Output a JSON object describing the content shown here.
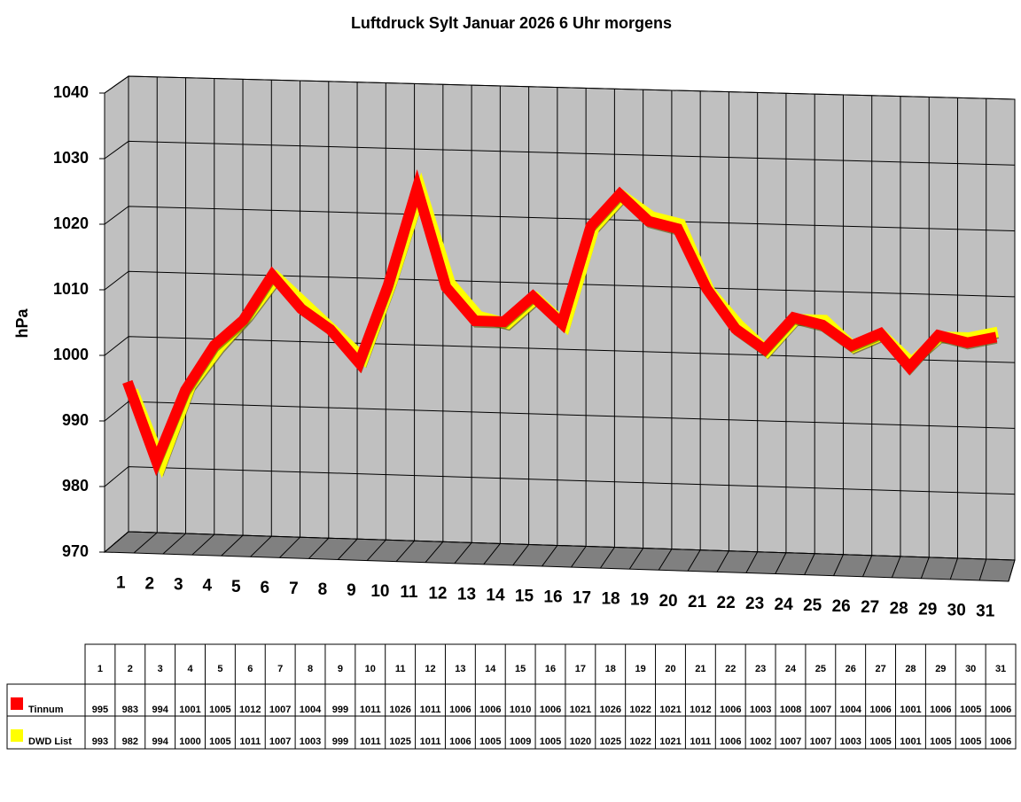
{
  "chart_data": {
    "type": "line3d",
    "title": "Luftdruck Sylt Januar 2026 6 Uhr morgens",
    "y_label": "hPa",
    "categories": [
      "1",
      "2",
      "3",
      "4",
      "5",
      "6",
      "7",
      "8",
      "9",
      "10",
      "11",
      "12",
      "13",
      "14",
      "15",
      "16",
      "17",
      "18",
      "19",
      "20",
      "21",
      "22",
      "23",
      "24",
      "25",
      "26",
      "27",
      "28",
      "29",
      "30",
      "31"
    ],
    "series": [
      {
        "name": "Tinnum",
        "color": "#ff0000",
        "values": [
          995,
          983,
          994,
          1001,
          1005,
          1012,
          1007,
          1004,
          999,
          1011,
          1026,
          1011,
          1006,
          1006,
          1010,
          1006,
          1021,
          1026,
          1022,
          1021,
          1012,
          1006,
          1003,
          1008,
          1007,
          1004,
          1006,
          1001,
          1006,
          1005,
          1006
        ]
      },
      {
        "name": "DWD List",
        "color": "#ffff00",
        "values": [
          993,
          982,
          994,
          1000,
          1005,
          1011,
          1007,
          1003,
          999,
          1011,
          1025,
          1011,
          1006,
          1005,
          1009,
          1005,
          1020,
          1025,
          1022,
          1021,
          1011,
          1006,
          1002,
          1007,
          1007,
          1003,
          1005,
          1001,
          1005,
          1005,
          1006
        ]
      }
    ],
    "ylim": [
      970,
      1040
    ],
    "yticks": [
      970,
      980,
      990,
      1000,
      1010,
      1020,
      1030,
      1040
    ],
    "grid": true
  }
}
